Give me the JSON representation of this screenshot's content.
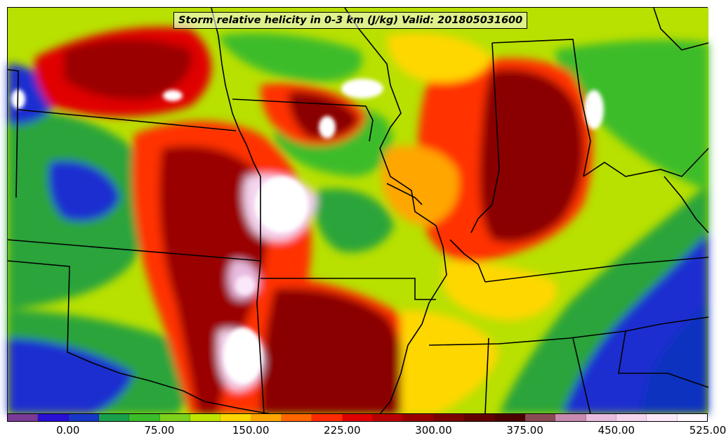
{
  "title": "Storm relative helicity in 0-3 km (J/kg) Valid: 201805031600",
  "colorbar": {
    "colors": [
      "#7b3a96",
      "#2a0fd6",
      "#1737c8",
      "#1aa04a",
      "#3cbc2a",
      "#7ed21c",
      "#c0e600",
      "#ffd700",
      "#ffa600",
      "#ff6600",
      "#ff2a00",
      "#e00000",
      "#b80000",
      "#980000",
      "#7a0000",
      "#620000",
      "#4a0000",
      "#8a4a55",
      "#c88ab0",
      "#e8bce0",
      "#f4d4ee",
      "#fae8f8",
      "#fff6fe"
    ],
    "tick_labels": [
      "0.00",
      "75.00",
      "150.00",
      "225.00",
      "300.00",
      "375.00",
      "450.00",
      "525.00"
    ]
  },
  "icons": [
    "state-borders",
    "helicity-field"
  ]
}
